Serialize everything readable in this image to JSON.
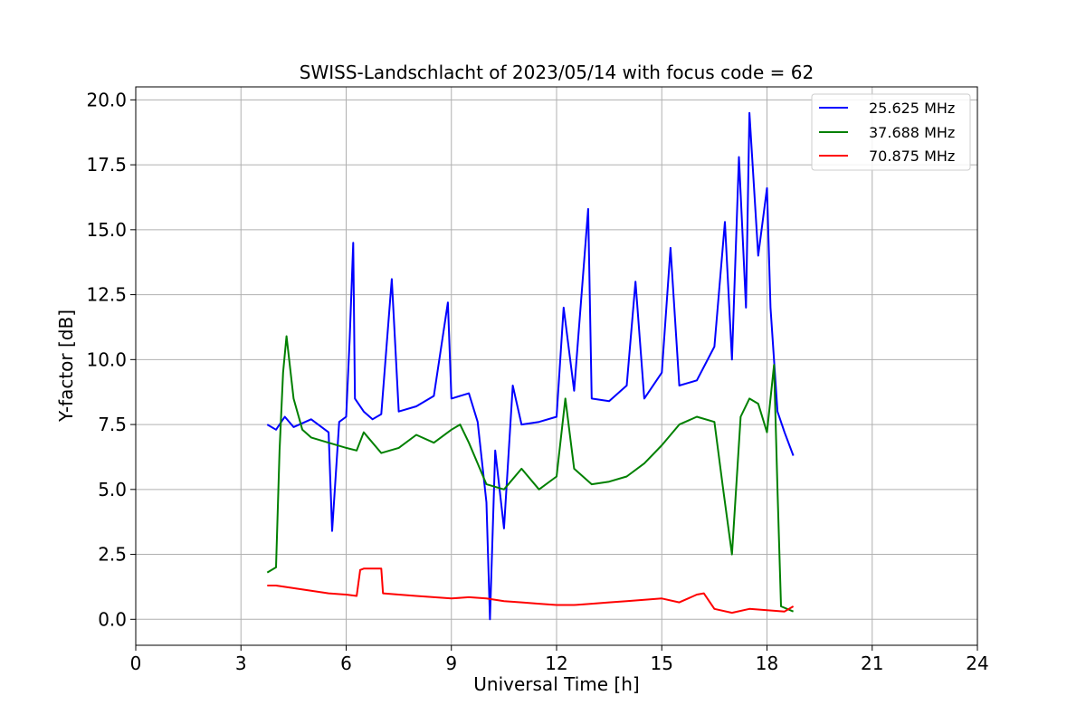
{
  "chart_data": {
    "type": "line",
    "title": "SWISS-Landschlacht of 2023/05/14 with focus code = 62",
    "xlabel": "Universal Time [h]",
    "ylabel": "Y-factor [dB]",
    "xlim": [
      0,
      24
    ],
    "ylim": [
      -1.0,
      20.5
    ],
    "xticks": [
      0,
      3,
      6,
      9,
      12,
      15,
      18,
      21,
      24
    ],
    "xtick_labels": [
      "0",
      "3",
      "6",
      "9",
      "12",
      "15",
      "18",
      "21",
      "24"
    ],
    "yticks": [
      0,
      2.5,
      5,
      7.5,
      10,
      12.5,
      15,
      17.5,
      20
    ],
    "ytick_labels": [
      "0.0",
      "2.5",
      "5.0",
      "7.5",
      "10.0",
      "12.5",
      "15.0",
      "17.5",
      "20.0"
    ],
    "grid": true,
    "legend_position": "top-right",
    "series": [
      {
        "name": "25.625 MHz",
        "color": "#0000ff",
        "x": [
          3.75,
          4.0,
          4.25,
          4.5,
          5.0,
          5.5,
          5.6,
          5.8,
          6.0,
          6.1,
          6.2,
          6.25,
          6.5,
          6.75,
          7.0,
          7.3,
          7.5,
          8.0,
          8.5,
          8.9,
          9.0,
          9.5,
          9.75,
          10.0,
          10.1,
          10.25,
          10.5,
          10.75,
          11.0,
          11.5,
          12.0,
          12.2,
          12.5,
          12.9,
          13.0,
          13.5,
          14.0,
          14.25,
          14.5,
          15.0,
          15.25,
          15.5,
          16.0,
          16.5,
          16.8,
          17.0,
          17.2,
          17.4,
          17.5,
          17.75,
          18.0,
          18.1,
          18.3,
          18.5,
          18.75
        ],
        "y": [
          7.5,
          7.3,
          7.8,
          7.4,
          7.7,
          7.2,
          3.4,
          7.6,
          7.8,
          10.8,
          14.5,
          8.5,
          8.0,
          7.7,
          7.9,
          13.1,
          8.0,
          8.2,
          8.6,
          12.2,
          8.5,
          8.7,
          7.6,
          4.5,
          0.0,
          6.5,
          3.5,
          9.0,
          7.5,
          7.6,
          7.8,
          12.0,
          8.8,
          15.8,
          8.5,
          8.4,
          9.0,
          13.0,
          8.5,
          9.5,
          14.3,
          9.0,
          9.2,
          10.5,
          15.3,
          10.0,
          17.8,
          12.0,
          19.5,
          14.0,
          16.6,
          12.0,
          8.0,
          7.2,
          6.3
        ]
      },
      {
        "name": "37.688 MHz",
        "color": "#008000",
        "x": [
          3.75,
          4.0,
          4.1,
          4.2,
          4.3,
          4.5,
          4.75,
          5.0,
          5.5,
          6.0,
          6.3,
          6.5,
          7.0,
          7.5,
          8.0,
          8.5,
          9.0,
          9.25,
          9.5,
          9.75,
          10.0,
          10.5,
          11.0,
          11.5,
          12.0,
          12.25,
          12.5,
          13.0,
          13.5,
          14.0,
          14.5,
          15.0,
          15.5,
          16.0,
          16.5,
          16.75,
          17.0,
          17.25,
          17.5,
          17.75,
          18.0,
          18.2,
          18.3,
          18.4,
          18.75
        ],
        "y": [
          1.8,
          2.0,
          6.5,
          9.5,
          10.9,
          8.5,
          7.3,
          7.0,
          6.8,
          6.6,
          6.5,
          7.2,
          6.4,
          6.6,
          7.1,
          6.8,
          7.3,
          7.5,
          6.8,
          6.0,
          5.2,
          5.0,
          5.8,
          5.0,
          5.5,
          8.5,
          5.8,
          5.2,
          5.3,
          5.5,
          6.0,
          6.7,
          7.5,
          7.8,
          7.6,
          5.0,
          2.5,
          7.8,
          8.5,
          8.3,
          7.2,
          9.8,
          5.0,
          0.5,
          0.3
        ]
      },
      {
        "name": "70.875 MHz",
        "color": "#ff0000",
        "x": [
          3.75,
          4.0,
          4.5,
          5.0,
          5.5,
          6.0,
          6.3,
          6.4,
          6.5,
          7.0,
          7.05,
          7.5,
          8.0,
          8.5,
          9.0,
          9.5,
          10.0,
          10.5,
          11.0,
          11.5,
          12.0,
          12.5,
          13.0,
          13.5,
          14.0,
          14.5,
          15.0,
          15.5,
          16.0,
          16.2,
          16.5,
          17.0,
          17.5,
          18.0,
          18.5,
          18.75
        ],
        "y": [
          1.3,
          1.3,
          1.2,
          1.1,
          1.0,
          0.95,
          0.9,
          1.9,
          1.95,
          1.95,
          1.0,
          0.95,
          0.9,
          0.85,
          0.8,
          0.85,
          0.8,
          0.7,
          0.65,
          0.6,
          0.55,
          0.55,
          0.6,
          0.65,
          0.7,
          0.75,
          0.8,
          0.65,
          0.95,
          1.0,
          0.4,
          0.25,
          0.4,
          0.35,
          0.3,
          0.5
        ]
      }
    ]
  }
}
